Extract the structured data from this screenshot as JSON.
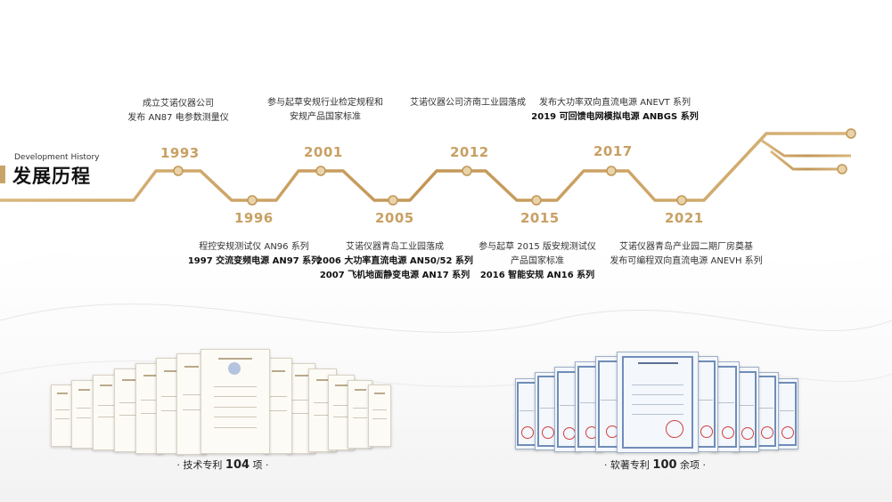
{
  "heading": {
    "english": "Development History",
    "chinese": "发展历程"
  },
  "milestones": [
    {
      "year": "1993",
      "lines": [
        {
          "text": "成立艾诺仪器公司",
          "bold": false
        },
        {
          "text": "发布 AN87 电参数测量仪",
          "bold": false
        }
      ]
    },
    {
      "year": "1996",
      "lines": [
        {
          "text": "程控安规测试仪 AN96 系列",
          "bold": false
        },
        {
          "text": "1997 交流变频电源 AN97 系列",
          "bold": false
        }
      ]
    },
    {
      "year": "2001",
      "lines": [
        {
          "text": "参与起草安规行业检定规程和",
          "bold": false
        },
        {
          "text": "安规产品国家标准",
          "bold": false
        }
      ]
    },
    {
      "year": "2005",
      "lines": [
        {
          "text": "艾诺仪器青岛工业园落成",
          "bold": false
        },
        {
          "text": "2006 大功率直流电源 AN50/52 系列",
          "bold": false
        },
        {
          "text": "2007 飞机地面静变电源 AN17 系列",
          "bold": false
        }
      ]
    },
    {
      "year": "2012",
      "lines": [
        {
          "text": "艾诺仪器公司济南工业园落成",
          "bold": false
        }
      ]
    },
    {
      "year": "2015",
      "lines": [
        {
          "text": "参与起草 2015 版安规测试仪",
          "bold": false
        },
        {
          "text": "产品国家标准",
          "bold": false
        },
        {
          "text": "2016 智能安规 AN16 系列",
          "bold": false
        }
      ]
    },
    {
      "year": "2017",
      "lines": [
        {
          "text": "发布大功率双向直流电源 ANEVT 系列",
          "bold": false
        },
        {
          "text": "2019 可回馈电网模拟电源 ANBGS 系列",
          "bold": false
        }
      ]
    },
    {
      "year": "2021",
      "lines": [
        {
          "text": "艾诺仪器青岛产业园二期厂房奠基",
          "bold": false
        },
        {
          "text": "发布可编程双向直流电源 ANEVH 系列",
          "bold": false
        }
      ]
    }
  ],
  "patents": {
    "prefix": "· 技术专利 ",
    "count": "104",
    "suffix": " 项 ·"
  },
  "software": {
    "prefix": "· 软著专利 ",
    "count": "100",
    "suffix": " 余项 ·"
  },
  "colors": {
    "gold": "#c8a064",
    "line": "#c9a46a",
    "text": "#333333"
  }
}
